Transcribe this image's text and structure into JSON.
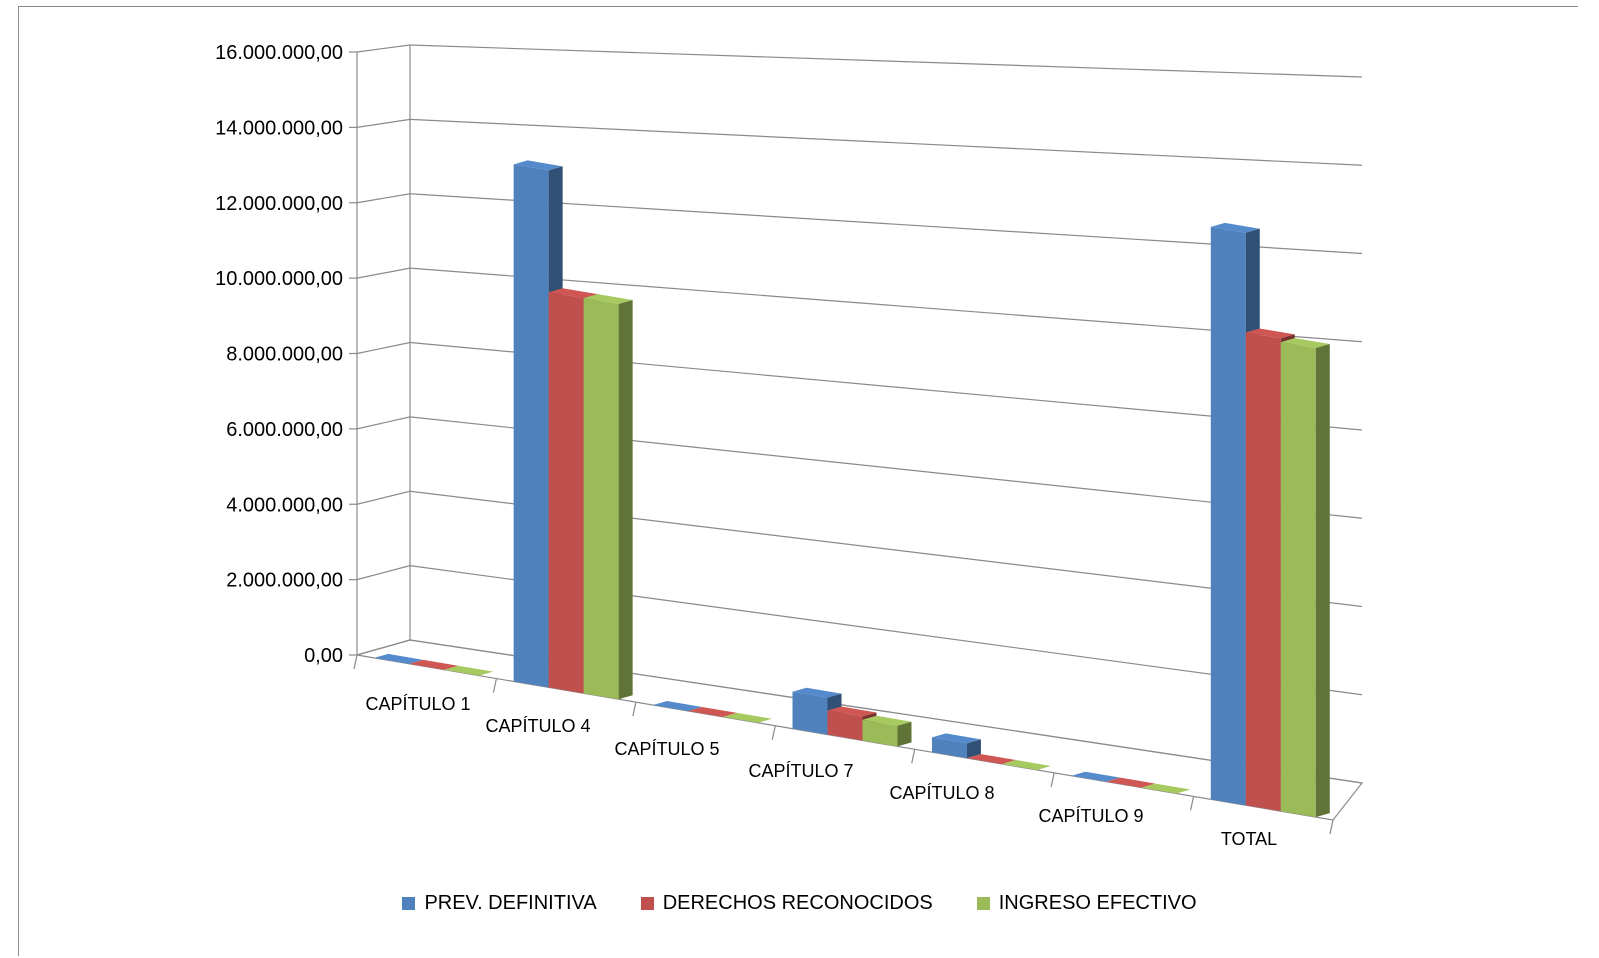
{
  "chart_data": {
    "type": "bar",
    "title": "",
    "xlabel": "",
    "ylabel": "",
    "ylim": [
      0,
      16000000
    ],
    "yticks": [
      "0,00",
      "2.000.000,00",
      "4.000.000,00",
      "6.000.000,00",
      "8.000.000,00",
      "10.000.000,00",
      "12.000.000,00",
      "14.000.000,00",
      "16.000.000,00"
    ],
    "categories": [
      "CAPÍTULO 1",
      "CAPÍTULO 4",
      "CAPÍTULO 5",
      "CAPÍTULO 7",
      "CAPÍTULO 8",
      "CAPÍTULO 9",
      "TOTAL"
    ],
    "series": [
      {
        "name": "PREV. DEFINITIVA",
        "color": "#4f81bd",
        "values": [
          0,
          14000000,
          0,
          1000000,
          400000,
          0,
          15500000
        ]
      },
      {
        "name": "DERECHOS RECONOCIDOS",
        "color": "#c0504d",
        "values": [
          0,
          10700000,
          0,
          650000,
          0,
          0,
          12800000
        ]
      },
      {
        "name": "INGRESO EFECTIVO",
        "color": "#9bbb59",
        "values": [
          0,
          10700000,
          0,
          560000,
          0,
          0,
          12700000
        ]
      }
    ],
    "grid": true,
    "legend_position": "bottom",
    "style": "3d-clustered-column"
  }
}
